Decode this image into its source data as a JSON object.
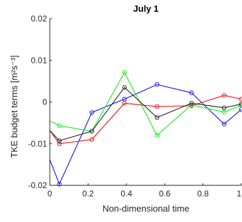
{
  "chart_data": {
    "type": "line",
    "title": "July 1",
    "xlabel": "Non-dimensional time",
    "ylabel": "TKE budget terms [m²s⁻³]",
    "xlim": [
      0,
      1
    ],
    "ylim": [
      -0.02,
      0.02
    ],
    "xticks": [
      0,
      0.2,
      0.4,
      0.6,
      0.8,
      1
    ],
    "xtick_labels": [
      "0",
      "0.2",
      "0.4",
      "0.6",
      "0.8",
      "1"
    ],
    "yticks": [
      -0.02,
      -0.01,
      0,
      0.01,
      0.02
    ],
    "ytick_labels": [
      "-0.02",
      "-0.01",
      "0",
      "0.01",
      "0.02"
    ],
    "grid": false,
    "x": [
      0,
      0.05,
      0.22,
      0.39,
      0.56,
      0.74,
      0.91,
      1.0
    ],
    "series": [
      {
        "color": "#2222ee",
        "values": [
          -0.0138,
          -0.0197,
          -0.0025,
          0.0007,
          0.0042,
          0.0022,
          -0.0053,
          -0.0018
        ]
      },
      {
        "color": "#ee2222",
        "values": [
          -0.0068,
          -0.01,
          -0.009,
          -0.0003,
          -0.0011,
          -0.0009,
          0.0016,
          0.0007
        ]
      },
      {
        "color": "#22ee22",
        "values": [
          -0.0045,
          -0.0057,
          -0.007,
          0.0071,
          -0.008,
          -0.0007,
          -0.0024,
          -0.0008
        ]
      },
      {
        "color": "#333333",
        "values": [
          -0.0068,
          -0.0093,
          -0.007,
          0.0035,
          -0.0037,
          -0.0003,
          -0.0014,
          -0.0005
        ]
      }
    ]
  }
}
